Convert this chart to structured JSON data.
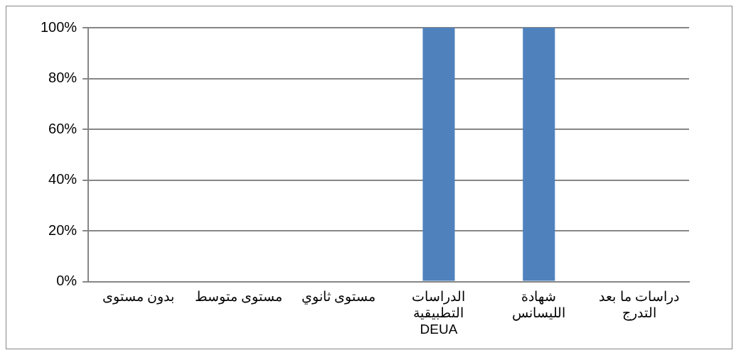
{
  "chart_data": {
    "type": "bar",
    "categories": [
      "بدون مستوى",
      "مستوى متوسط",
      "مستوى ثانوي",
      "الدراسات التطبيقية DEUA",
      "شهادة الليسانس",
      "دراسات ما بعد التدرج"
    ],
    "values": [
      0,
      0,
      0,
      100,
      100,
      0
    ],
    "color": "#4f81bd",
    "ylim": [
      0,
      100
    ],
    "yticks": [
      {
        "value": 0,
        "label": "0%"
      },
      {
        "value": 20,
        "label": "20%"
      },
      {
        "value": 40,
        "label": "40%"
      },
      {
        "value": 60,
        "label": "60%"
      },
      {
        "value": 80,
        "label": "80%"
      },
      {
        "value": 100,
        "label": "100%"
      }
    ],
    "grid": "y",
    "legend": false
  }
}
